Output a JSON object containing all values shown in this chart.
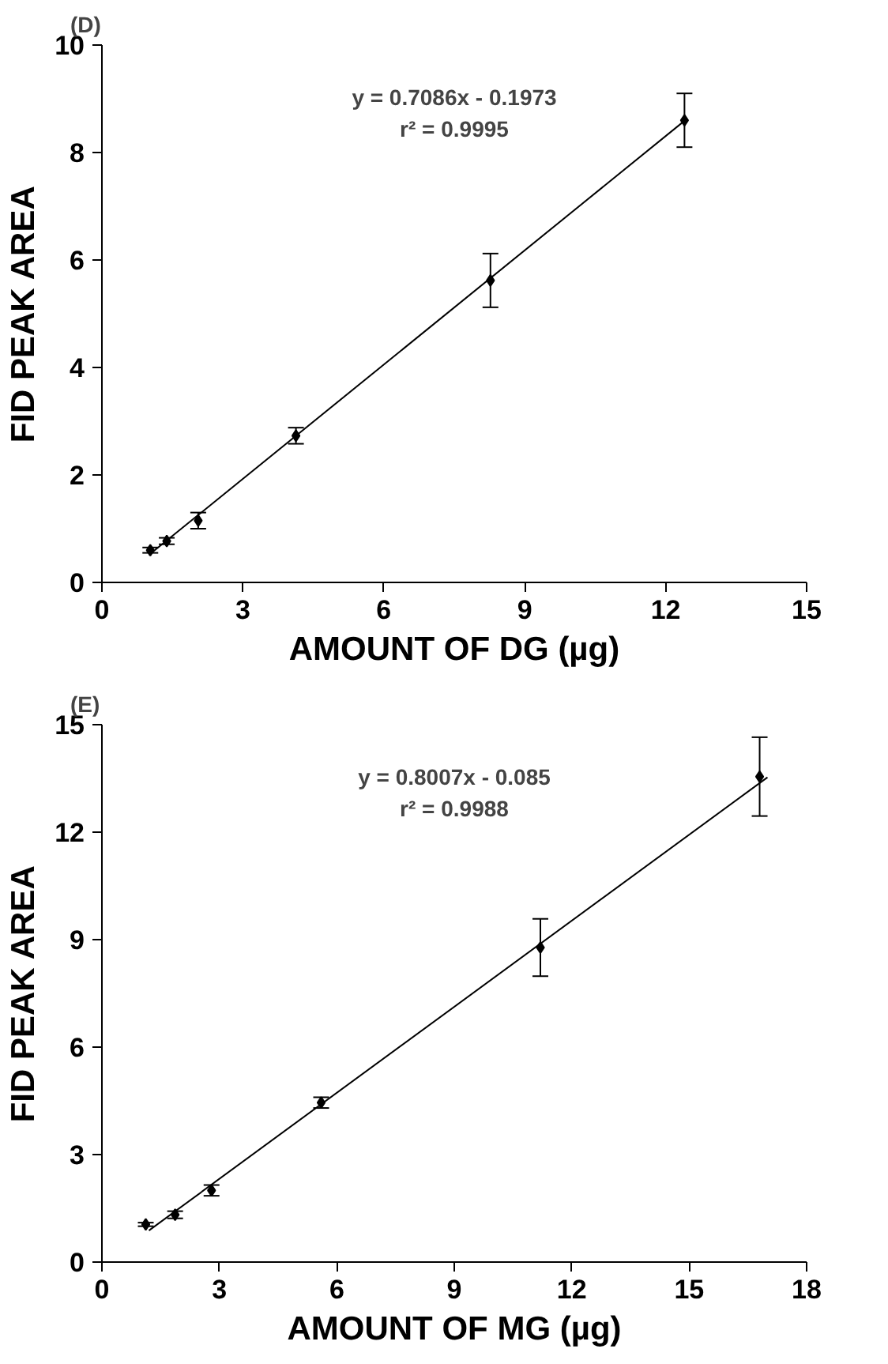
{
  "chart_data": [
    {
      "type": "scatter",
      "title": "(D)",
      "xlabel": "AMOUNT OF DG (µg)",
      "ylabel": "FID PEAK AREA",
      "grid": false,
      "annotations": [
        "y = 0.7086x - 0.1973",
        "r² = 0.9995"
      ],
      "xlim": [
        0,
        15
      ],
      "xticks": [
        0,
        3,
        6,
        9,
        12,
        15
      ],
      "ylim": [
        0,
        10
      ],
      "yticks": [
        0,
        2,
        4,
        6,
        8,
        10
      ],
      "series": [
        {
          "color": "#000000",
          "marker": "diamond",
          "x": [
            1.03,
            1.38,
            2.05,
            4.13,
            8.27,
            12.4
          ],
          "values": [
            0.6,
            0.77,
            1.15,
            2.73,
            5.62,
            8.6
          ],
          "errors": [
            0.05,
            0.06,
            0.15,
            0.15,
            0.5,
            0.5
          ]
        },
        {
          "type": "line",
          "color": "#000000",
          "x": [
            1.0,
            12.4
          ],
          "values": [
            0.51,
            8.59
          ]
        }
      ]
    },
    {
      "type": "scatter",
      "title": "(E)",
      "xlabel": "AMOUNT OF MG (µg)",
      "ylabel": "FID PEAK AREA",
      "grid": false,
      "annotations": [
        "y = 0.8007x - 0.085",
        "r² = 0.9988"
      ],
      "xlim": [
        0,
        18
      ],
      "xticks": [
        0,
        3,
        6,
        9,
        12,
        15,
        18
      ],
      "ylim": [
        0,
        15
      ],
      "yticks": [
        0,
        3,
        6,
        9,
        12,
        15
      ],
      "series": [
        {
          "color": "#000000",
          "marker": "diamond",
          "x": [
            1.12,
            1.87,
            2.8,
            5.6,
            11.2,
            16.8
          ],
          "values": [
            1.05,
            1.32,
            2.0,
            4.45,
            8.78,
            13.55
          ],
          "errors": [
            0.05,
            0.1,
            0.15,
            0.15,
            0.8,
            1.1
          ]
        },
        {
          "type": "line",
          "color": "#000000",
          "x": [
            1.2,
            17.0
          ],
          "values": [
            0.88,
            13.53
          ]
        }
      ]
    }
  ]
}
